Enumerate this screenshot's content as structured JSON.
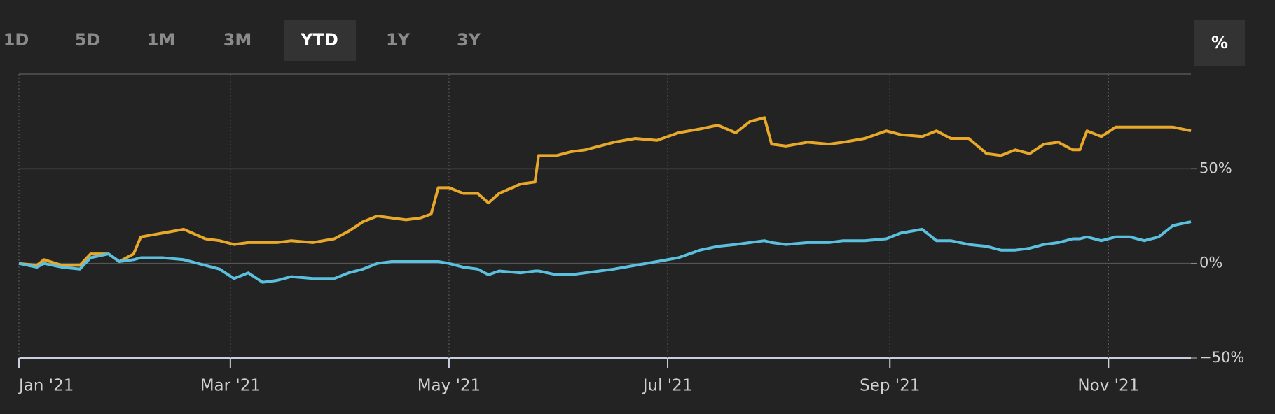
{
  "controls": {
    "range_buttons": [
      {
        "label": "1D"
      },
      {
        "label": "5D"
      },
      {
        "label": "1M"
      },
      {
        "label": "3M"
      },
      {
        "label": "YTD",
        "active": true
      },
      {
        "label": "1Y"
      },
      {
        "label": "3Y"
      }
    ],
    "percent_button": "%"
  },
  "chart_data": {
    "type": "line",
    "x": [
      0,
      5,
      7,
      12,
      17,
      20,
      25,
      28,
      32,
      34,
      40,
      46,
      52,
      56,
      60,
      64,
      68,
      72,
      76,
      82,
      88,
      92,
      96,
      100,
      104,
      108,
      112,
      115,
      117,
      120,
      124,
      128,
      131,
      134,
      140,
      144,
      145,
      150,
      154,
      158,
      162,
      166,
      172,
      178,
      184,
      190,
      195,
      200,
      204,
      208,
      210,
      214,
      220,
      226,
      230,
      236,
      242,
      246,
      252,
      256,
      260,
      265,
      270,
      274,
      278,
      282,
      286,
      290,
      294,
      296,
      298,
      302,
      306,
      310,
      314,
      318,
      322,
      327
    ],
    "series": [
      {
        "color": "#e8a92a",
        "values": [
          0,
          -1,
          2,
          -1,
          -1,
          5,
          5,
          1,
          5,
          14,
          16,
          18,
          13,
          12,
          10,
          11,
          11,
          11,
          12,
          11,
          13,
          17,
          22,
          25,
          24,
          23,
          24,
          26,
          40,
          40,
          37,
          37,
          32,
          37,
          42,
          43,
          57,
          57,
          59,
          60,
          62,
          64,
          66,
          65,
          69,
          71,
          73,
          69,
          75,
          77,
          63,
          62,
          64,
          63,
          64,
          66,
          70,
          68,
          67,
          70,
          66,
          66,
          58,
          57,
          60,
          58,
          63,
          64,
          60,
          60,
          70,
          67,
          72,
          72,
          72,
          72,
          72,
          70
        ]
      },
      {
        "color": "#5bc0de",
        "values": [
          0,
          -2,
          0,
          -2,
          -3,
          3,
          5,
          1,
          2,
          3,
          3,
          2,
          -1,
          -3,
          -8,
          -5,
          -10,
          -9,
          -7,
          -8,
          -8,
          -5,
          -3,
          0,
          1,
          1,
          1,
          1,
          1,
          0,
          -2,
          -3,
          -6,
          -4,
          -5,
          -4,
          -4,
          -6,
          -6,
          -5,
          -4,
          -3,
          -1,
          1,
          3,
          7,
          9,
          10,
          11,
          12,
          11,
          10,
          11,
          11,
          12,
          12,
          13,
          16,
          18,
          12,
          12,
          10,
          9,
          7,
          7,
          8,
          10,
          11,
          13,
          13,
          14,
          12,
          14,
          14,
          12,
          14,
          20,
          22
        ]
      }
    ],
    "xlim": [
      0,
      327
    ],
    "xticks": [
      {
        "value": 0,
        "label": "Jan '21"
      },
      {
        "value": 59,
        "label": "Mar '21"
      },
      {
        "value": 120,
        "label": "May '21"
      },
      {
        "value": 181,
        "label": "Jul '21"
      },
      {
        "value": 243,
        "label": "Sep '21"
      },
      {
        "value": 304,
        "label": "Nov '21"
      }
    ],
    "ylim": [
      -50,
      100
    ],
    "yticks": [
      {
        "value": -50,
        "label": "−50%"
      },
      {
        "value": 0,
        "label": "0%"
      },
      {
        "value": 50,
        "label": "50%"
      }
    ],
    "grid": true
  }
}
